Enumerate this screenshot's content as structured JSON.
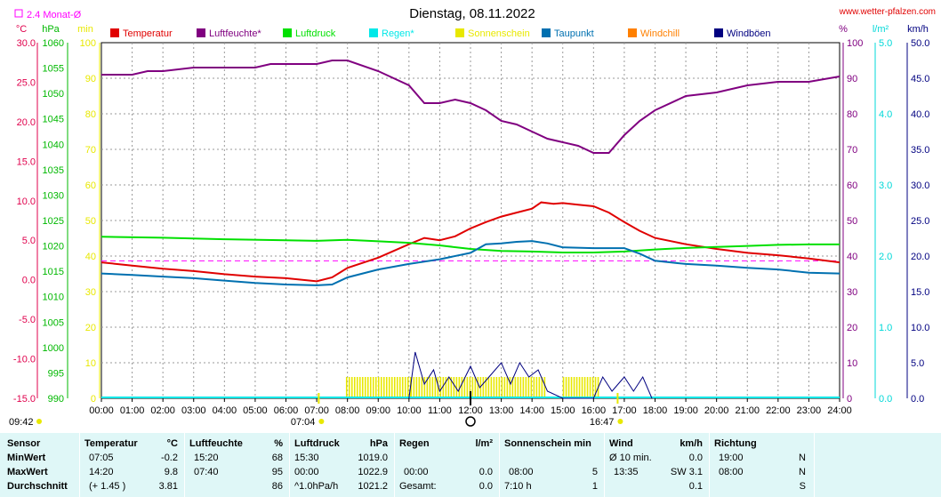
{
  "header": {
    "title": "Dienstag, 08.11.2022",
    "site": "www.wetter-pfalzen.com",
    "monthly_avg": "2.4 Monat-Ø"
  },
  "chart_data": {
    "type": "line",
    "title": "Dienstag, 08.11.2022",
    "x_ticks": [
      "00:00",
      "01:00",
      "02:00",
      "03:00",
      "04:00",
      "05:00",
      "06:00",
      "07:00",
      "08:00",
      "09:00",
      "10:00",
      "11:00",
      "12:00",
      "13:00",
      "14:00",
      "15:00",
      "16:00",
      "17:00",
      "18:00",
      "19:00",
      "20:00",
      "21:00",
      "22:00",
      "23:00",
      "24:00"
    ],
    "axes": {
      "temp": {
        "unit": "°C",
        "range": [
          -15,
          30
        ],
        "ticks": [
          "30.0",
          "25.0",
          "20.0",
          "15.0",
          "10.0",
          "5.0",
          "0.0",
          "-5.0",
          "-10.0",
          "-15.0"
        ],
        "color": "#e0004c"
      },
      "pressure": {
        "unit": "hPa",
        "range": [
          990,
          1060
        ],
        "ticks": [
          "1060",
          "1055",
          "1050",
          "1045",
          "1040",
          "1035",
          "1030",
          "1025",
          "1020",
          "1015",
          "1010",
          "1005",
          "1000",
          "995",
          "990"
        ],
        "color": "#00b800"
      },
      "minutes": {
        "unit": "min",
        "range": [
          0,
          100
        ],
        "ticks": [
          "100",
          "90",
          "80",
          "70",
          "60",
          "50",
          "40",
          "30",
          "20",
          "10",
          "0"
        ],
        "color": "#e8e800"
      },
      "humidity": {
        "unit": "%",
        "range": [
          0,
          100
        ],
        "ticks": [
          "100",
          "90",
          "80",
          "70",
          "60",
          "50",
          "40",
          "30",
          "20",
          "10",
          "0"
        ],
        "color": "#800080"
      },
      "rain": {
        "unit": "l/m²",
        "range": [
          0,
          5
        ],
        "ticks": [
          "5.0",
          "4.0",
          "3.0",
          "2.0",
          "1.0",
          "0.0"
        ],
        "color": "#00d8d8"
      },
      "wind": {
        "unit": "km/h",
        "range": [
          0,
          50
        ],
        "ticks": [
          "50.0",
          "45.0",
          "40.0",
          "35.0",
          "30.0",
          "25.0",
          "20.0",
          "15.0",
          "10.0",
          "5.0",
          "0.0"
        ],
        "color": "#000080"
      }
    },
    "legend": [
      {
        "name": "Temperatur",
        "color": "#e00000"
      },
      {
        "name": "Luftfeuchte*",
        "color": "#800080"
      },
      {
        "name": "Luftdruck",
        "color": "#00e000"
      },
      {
        "name": "Regen*",
        "color": "#00e8e8"
      },
      {
        "name": "Sonnenschein",
        "color": "#e8e800"
      },
      {
        "name": "Taupunkt",
        "color": "#0070b0"
      },
      {
        "name": "Windchill",
        "color": "#ff8000"
      },
      {
        "name": "Windböen",
        "color": "#000080"
      }
    ],
    "series": [
      {
        "name": "Temperatur",
        "axis": "temp",
        "color": "#e00000",
        "points": [
          [
            0,
            2.2
          ],
          [
            1,
            1.8
          ],
          [
            2,
            1.4
          ],
          [
            3,
            1.1
          ],
          [
            4,
            0.7
          ],
          [
            5,
            0.4
          ],
          [
            6,
            0.2
          ],
          [
            7,
            -0.2
          ],
          [
            7.5,
            0.3
          ],
          [
            8,
            1.5
          ],
          [
            9,
            2.8
          ],
          [
            10,
            4.5
          ],
          [
            10.5,
            5.3
          ],
          [
            11,
            5.0
          ],
          [
            11.5,
            5.5
          ],
          [
            12,
            6.5
          ],
          [
            12.5,
            7.3
          ],
          [
            13,
            8.0
          ],
          [
            13.5,
            8.5
          ],
          [
            14,
            9.0
          ],
          [
            14.3,
            9.8
          ],
          [
            14.7,
            9.6
          ],
          [
            15,
            9.7
          ],
          [
            15.5,
            9.5
          ],
          [
            16,
            9.3
          ],
          [
            16.5,
            8.5
          ],
          [
            17,
            7.3
          ],
          [
            17.5,
            6.2
          ],
          [
            18,
            5.3
          ],
          [
            19,
            4.5
          ],
          [
            20,
            3.9
          ],
          [
            21,
            3.4
          ],
          [
            22,
            3.1
          ],
          [
            23,
            2.7
          ],
          [
            24,
            2.2
          ]
        ]
      },
      {
        "name": "Luftfeuchte*",
        "axis": "humidity",
        "color": "#800080",
        "points": [
          [
            0,
            91
          ],
          [
            1,
            91
          ],
          [
            1.5,
            92
          ],
          [
            2,
            92
          ],
          [
            3,
            93
          ],
          [
            4,
            93
          ],
          [
            5,
            93
          ],
          [
            5.5,
            94
          ],
          [
            6,
            94
          ],
          [
            7,
            94
          ],
          [
            7.5,
            95
          ],
          [
            8,
            95
          ],
          [
            9,
            92
          ],
          [
            10,
            88
          ],
          [
            10.5,
            83
          ],
          [
            11,
            83
          ],
          [
            11.5,
            84
          ],
          [
            12,
            83
          ],
          [
            12.5,
            81
          ],
          [
            13,
            78
          ],
          [
            13.5,
            77
          ],
          [
            14,
            75
          ],
          [
            14.5,
            73
          ],
          [
            15,
            72
          ],
          [
            15.5,
            71
          ],
          [
            16,
            69
          ],
          [
            16.5,
            69
          ],
          [
            17,
            74
          ],
          [
            17.5,
            78
          ],
          [
            18,
            81
          ],
          [
            19,
            85
          ],
          [
            20,
            86
          ],
          [
            21,
            88
          ],
          [
            22,
            89
          ],
          [
            23,
            89
          ],
          [
            24,
            90.5
          ]
        ]
      },
      {
        "name": "Luftdruck",
        "axis": "pressure",
        "color": "#00e000",
        "points": [
          [
            0,
            1021.8
          ],
          [
            2,
            1021.6
          ],
          [
            4,
            1021.3
          ],
          [
            6,
            1021.1
          ],
          [
            7,
            1021.0
          ],
          [
            8,
            1021.2
          ],
          [
            9,
            1020.9
          ],
          [
            10,
            1020.6
          ],
          [
            11,
            1020.1
          ],
          [
            12,
            1019.4
          ],
          [
            13,
            1019.0
          ],
          [
            14,
            1018.9
          ],
          [
            15,
            1018.7
          ],
          [
            16,
            1018.7
          ],
          [
            17,
            1018.9
          ],
          [
            18,
            1019.3
          ],
          [
            19,
            1019.6
          ],
          [
            20,
            1019.8
          ],
          [
            21,
            1020.0
          ],
          [
            22,
            1020.2
          ],
          [
            23,
            1020.3
          ],
          [
            24,
            1020.3
          ]
        ]
      },
      {
        "name": "Taupunkt",
        "axis": "temp",
        "color": "#0070b0",
        "points": [
          [
            0,
            0.8
          ],
          [
            1,
            0.6
          ],
          [
            2,
            0.4
          ],
          [
            3,
            0.2
          ],
          [
            4,
            -0.1
          ],
          [
            5,
            -0.4
          ],
          [
            6,
            -0.6
          ],
          [
            7,
            -0.7
          ],
          [
            7.5,
            -0.6
          ],
          [
            8,
            0.3
          ],
          [
            9,
            1.3
          ],
          [
            10,
            2.0
          ],
          [
            11,
            2.6
          ],
          [
            12,
            3.4
          ],
          [
            12.5,
            4.5
          ],
          [
            13,
            4.6
          ],
          [
            13.5,
            4.8
          ],
          [
            14,
            4.9
          ],
          [
            14.5,
            4.6
          ],
          [
            15,
            4.1
          ],
          [
            16,
            4.0
          ],
          [
            17,
            4.0
          ],
          [
            17.5,
            3.3
          ],
          [
            18,
            2.4
          ],
          [
            19,
            2.0
          ],
          [
            20,
            1.8
          ],
          [
            21,
            1.5
          ],
          [
            22,
            1.3
          ],
          [
            23,
            0.9
          ],
          [
            24,
            0.8
          ]
        ]
      },
      {
        "name": "Windböen",
        "axis": "wind",
        "color": "#000080",
        "points": [
          [
            10,
            0
          ],
          [
            10.2,
            6.5
          ],
          [
            10.5,
            2
          ],
          [
            10.8,
            4
          ],
          [
            11,
            1
          ],
          [
            11.3,
            3
          ],
          [
            11.6,
            1
          ],
          [
            12,
            4.5
          ],
          [
            12.3,
            1.5
          ],
          [
            12.6,
            3
          ],
          [
            13,
            5
          ],
          [
            13.3,
            2
          ],
          [
            13.6,
            5
          ],
          [
            13.9,
            3
          ],
          [
            14.2,
            4
          ],
          [
            14.5,
            1
          ],
          [
            15,
            0
          ],
          [
            16,
            0
          ],
          [
            16.3,
            3
          ],
          [
            16.6,
            1
          ],
          [
            17,
            3
          ],
          [
            17.3,
            1
          ],
          [
            17.6,
            3
          ],
          [
            17.9,
            0
          ]
        ]
      },
      {
        "name": "Sonnenschein",
        "axis": "minutes",
        "type": "bars",
        "color": "#e8e800",
        "intervals": [
          [
            7.95,
            10.05,
            5
          ],
          [
            10.05,
            14.4,
            5
          ],
          [
            15,
            16.2,
            5
          ]
        ]
      }
    ],
    "monthly_avg_temp": 2.4,
    "annotations": {
      "sunrise": "07:04",
      "sunset": "16:47",
      "now": "09:42",
      "moon_time": 12
    }
  },
  "table": {
    "sensor_label": "Sensor",
    "rows": [
      "MinWert",
      "MaxWert",
      "Durchschnitt"
    ],
    "temp": {
      "header": "Temperatur",
      "unit": "°C",
      "min": [
        "07:05",
        "-0.2"
      ],
      "max": [
        "14:20",
        "9.8"
      ],
      "avg": [
        "(+ 1.45 )",
        "3.81"
      ]
    },
    "hum": {
      "header": "Luftfeuchte",
      "unit": "%",
      "min": [
        "15:20",
        "68"
      ],
      "max": [
        "07:40",
        "95"
      ],
      "avg": [
        "",
        "86"
      ]
    },
    "press": {
      "header": "Luftdruck",
      "unit": "hPa",
      "min": [
        "15:30",
        "1019.0"
      ],
      "max": [
        "00:00",
        "1022.9"
      ],
      "avg": [
        "^1.0hPa/h",
        "1021.2"
      ]
    },
    "rain": {
      "header": "Regen",
      "unit": "l/m²",
      "min": [
        "",
        ""
      ],
      "max": [
        "00:00",
        "0.0"
      ],
      "avg": [
        "Gesamt:",
        "0.0"
      ]
    },
    "sun": {
      "header": "Sonnenschein min",
      "unit": "",
      "min": [
        "",
        ""
      ],
      "max": [
        "08:00",
        "5"
      ],
      "avg": [
        "7:10 h",
        "1"
      ]
    },
    "wind": {
      "header": "Wind",
      "unit": "km/h",
      "min": [
        "Ø 10 min.",
        "0.0"
      ],
      "max": [
        "13:35",
        "SW 3.1"
      ],
      "avg": [
        "",
        "0.1"
      ]
    },
    "dir": {
      "header": "Richtung",
      "min": [
        "19:00",
        "N"
      ],
      "max": [
        "08:00",
        "N"
      ],
      "avg": [
        "",
        "S"
      ]
    }
  }
}
